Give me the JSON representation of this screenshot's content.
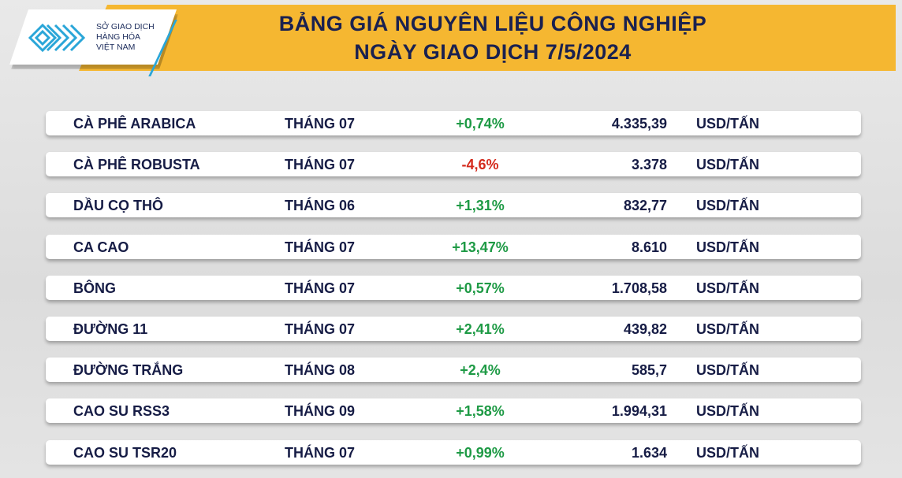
{
  "logo": {
    "lines": [
      "SỞ GIAO DỊCH",
      "HÀNG HÓA",
      "VIỆT NAM"
    ]
  },
  "header": {
    "title_line1": "BẢNG GIÁ NGUYÊN LIỆU CÔNG NGHIỆP",
    "title_line2": "NGÀY GIAO DỊCH 7/5/2024"
  },
  "colors": {
    "banner": "#f5b731",
    "title": "#1a2150",
    "up": "#1e9a45",
    "down": "#d42a1c",
    "logo_blue": "#2aa6d8"
  },
  "rows": [
    {
      "name": "CÀ PHÊ ARABICA",
      "month": "THÁNG 07",
      "change": "+0,74%",
      "price": "4.335,39",
      "unit": "USD/TẤN",
      "dir": "up"
    },
    {
      "name": "CÀ PHÊ ROBUSTA",
      "month": "THÁNG 07",
      "change": "-4,6%",
      "price": "3.378",
      "unit": "USD/TẤN",
      "dir": "down"
    },
    {
      "name": "DẦU CỌ THÔ",
      "month": "THÁNG 06",
      "change": "+1,31%",
      "price": "832,77",
      "unit": "USD/TẤN",
      "dir": "up"
    },
    {
      "name": "CA CAO",
      "month": "THÁNG 07",
      "change": "+13,47%",
      "price": "8.610",
      "unit": "USD/TẤN",
      "dir": "up"
    },
    {
      "name": "BÔNG",
      "month": "THÁNG 07",
      "change": "+0,57%",
      "price": "1.708,58",
      "unit": "USD/TẤN",
      "dir": "up"
    },
    {
      "name": "ĐƯỜNG 11",
      "month": "THÁNG 07",
      "change": "+2,41%",
      "price": "439,82",
      "unit": "USD/TẤN",
      "dir": "up"
    },
    {
      "name": "ĐƯỜNG TRẮNG",
      "month": "THÁNG 08",
      "change": "+2,4%",
      "price": "585,7",
      "unit": "USD/TẤN",
      "dir": "up"
    },
    {
      "name": "CAO SU RSS3",
      "month": "THÁNG 09",
      "change": "+1,58%",
      "price": "1.994,31",
      "unit": "USD/TẤN",
      "dir": "up"
    },
    {
      "name": "CAO SU TSR20",
      "month": "THÁNG 07",
      "change": "+0,99%",
      "price": "1.634",
      "unit": "USD/TẤN",
      "dir": "up"
    }
  ]
}
